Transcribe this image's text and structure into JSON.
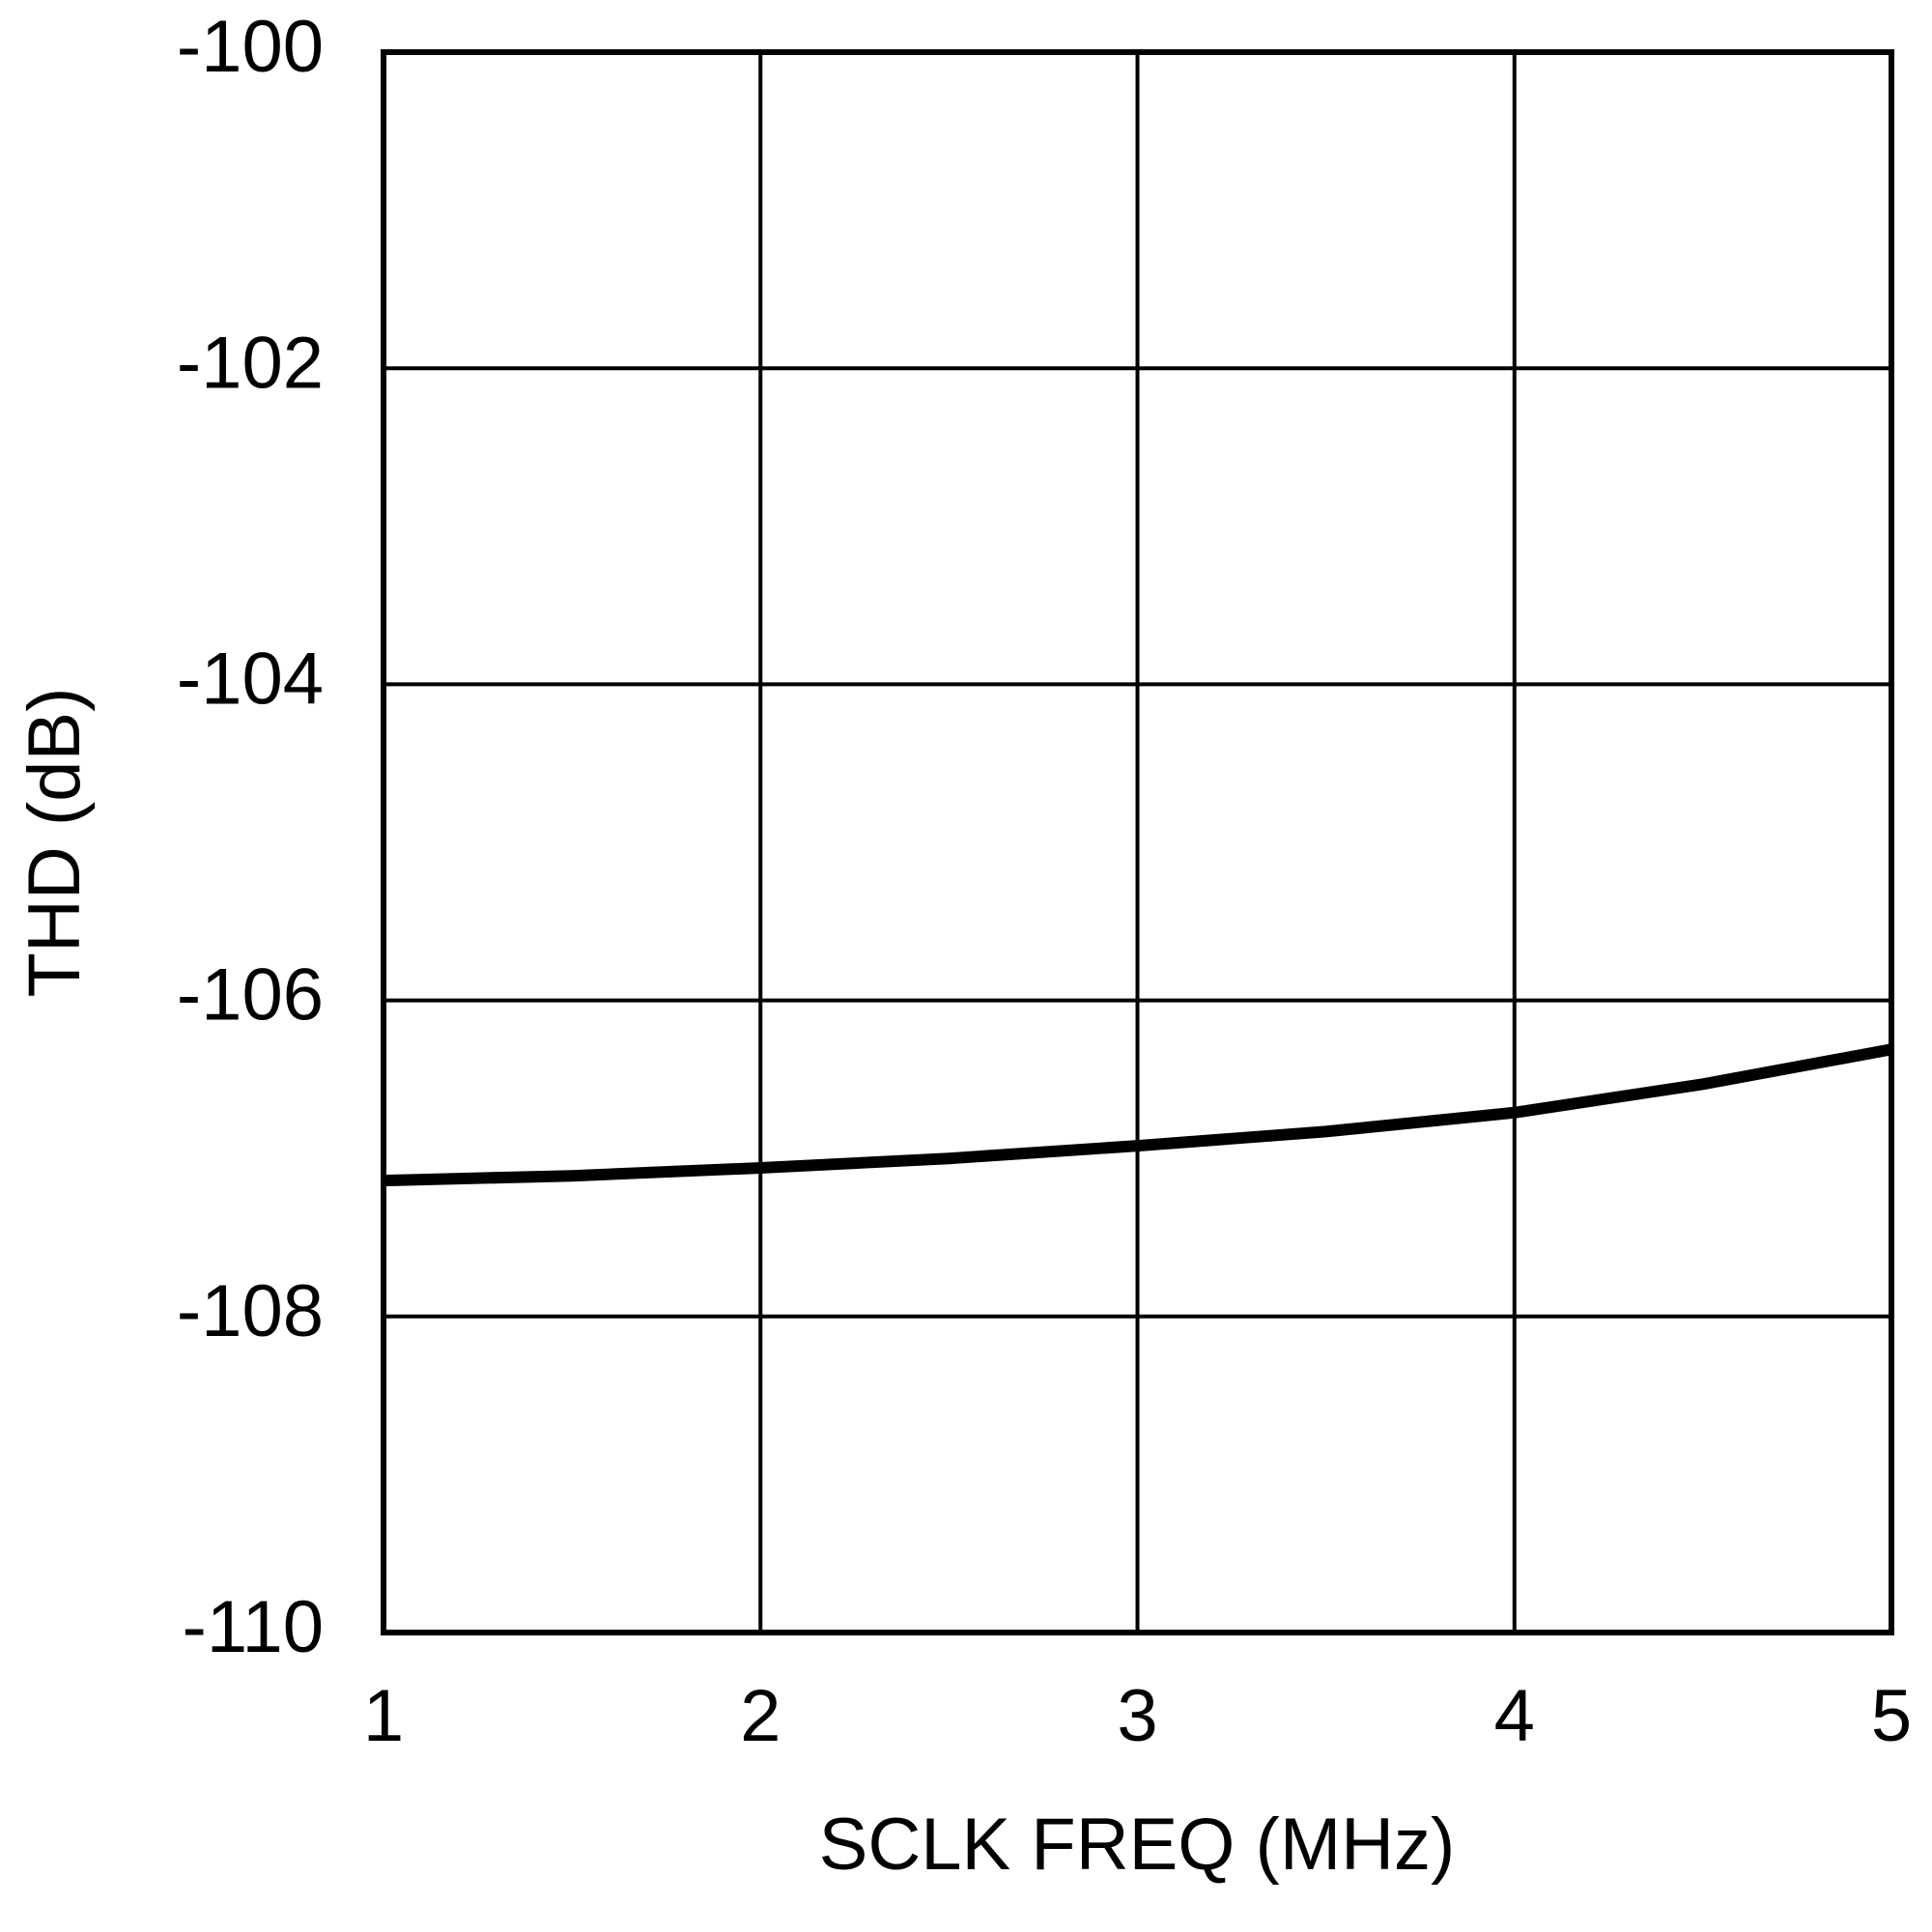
{
  "chart_data": {
    "type": "line",
    "x_label": "SCLK FREQ (MHz)",
    "y_label": "THD (dB)",
    "x": [
      1,
      1.5,
      2,
      2.5,
      3,
      3.5,
      4,
      4.5,
      5
    ],
    "series": [
      {
        "color": "#000000",
        "values": [
          -107.14,
          -107.11,
          -107.06,
          -107.0,
          -106.92,
          -106.83,
          -106.71,
          -106.53,
          -106.31
        ]
      }
    ],
    "xlim": [
      1,
      5
    ],
    "xticks": [
      1,
      2,
      3,
      4,
      5
    ],
    "ylim": [
      -110,
      -100
    ],
    "yticks": [
      -110,
      -108,
      -106,
      -104,
      -102,
      -100
    ],
    "grid": true
  }
}
